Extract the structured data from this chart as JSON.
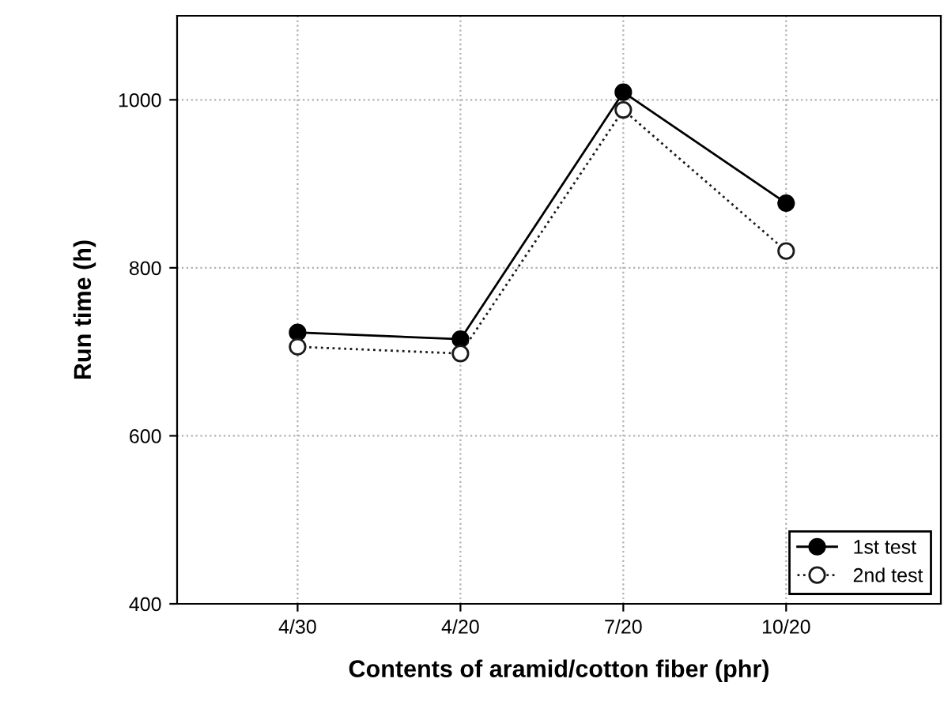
{
  "chart_data": {
    "type": "line",
    "xlabel": "Contents of aramid/cotton fiber (phr)",
    "ylabel": "Run time (h)",
    "categories": [
      "4/30",
      "4/20",
      "7/20",
      "10/20"
    ],
    "series": [
      {
        "name": "1st test",
        "color": "#000000",
        "values": [
          723,
          715,
          1009,
          877
        ],
        "marker": "circle",
        "line_style": "solid"
      },
      {
        "name": "2nd test",
        "color": "#1a1a1a",
        "values": [
          706,
          698,
          988,
          820
        ],
        "marker": "circle",
        "line_style": "dotted"
      }
    ],
    "ylim": [
      400,
      1100
    ],
    "yticks": [
      400,
      600,
      800,
      1000
    ],
    "grid": true,
    "legend": "bottom right"
  }
}
